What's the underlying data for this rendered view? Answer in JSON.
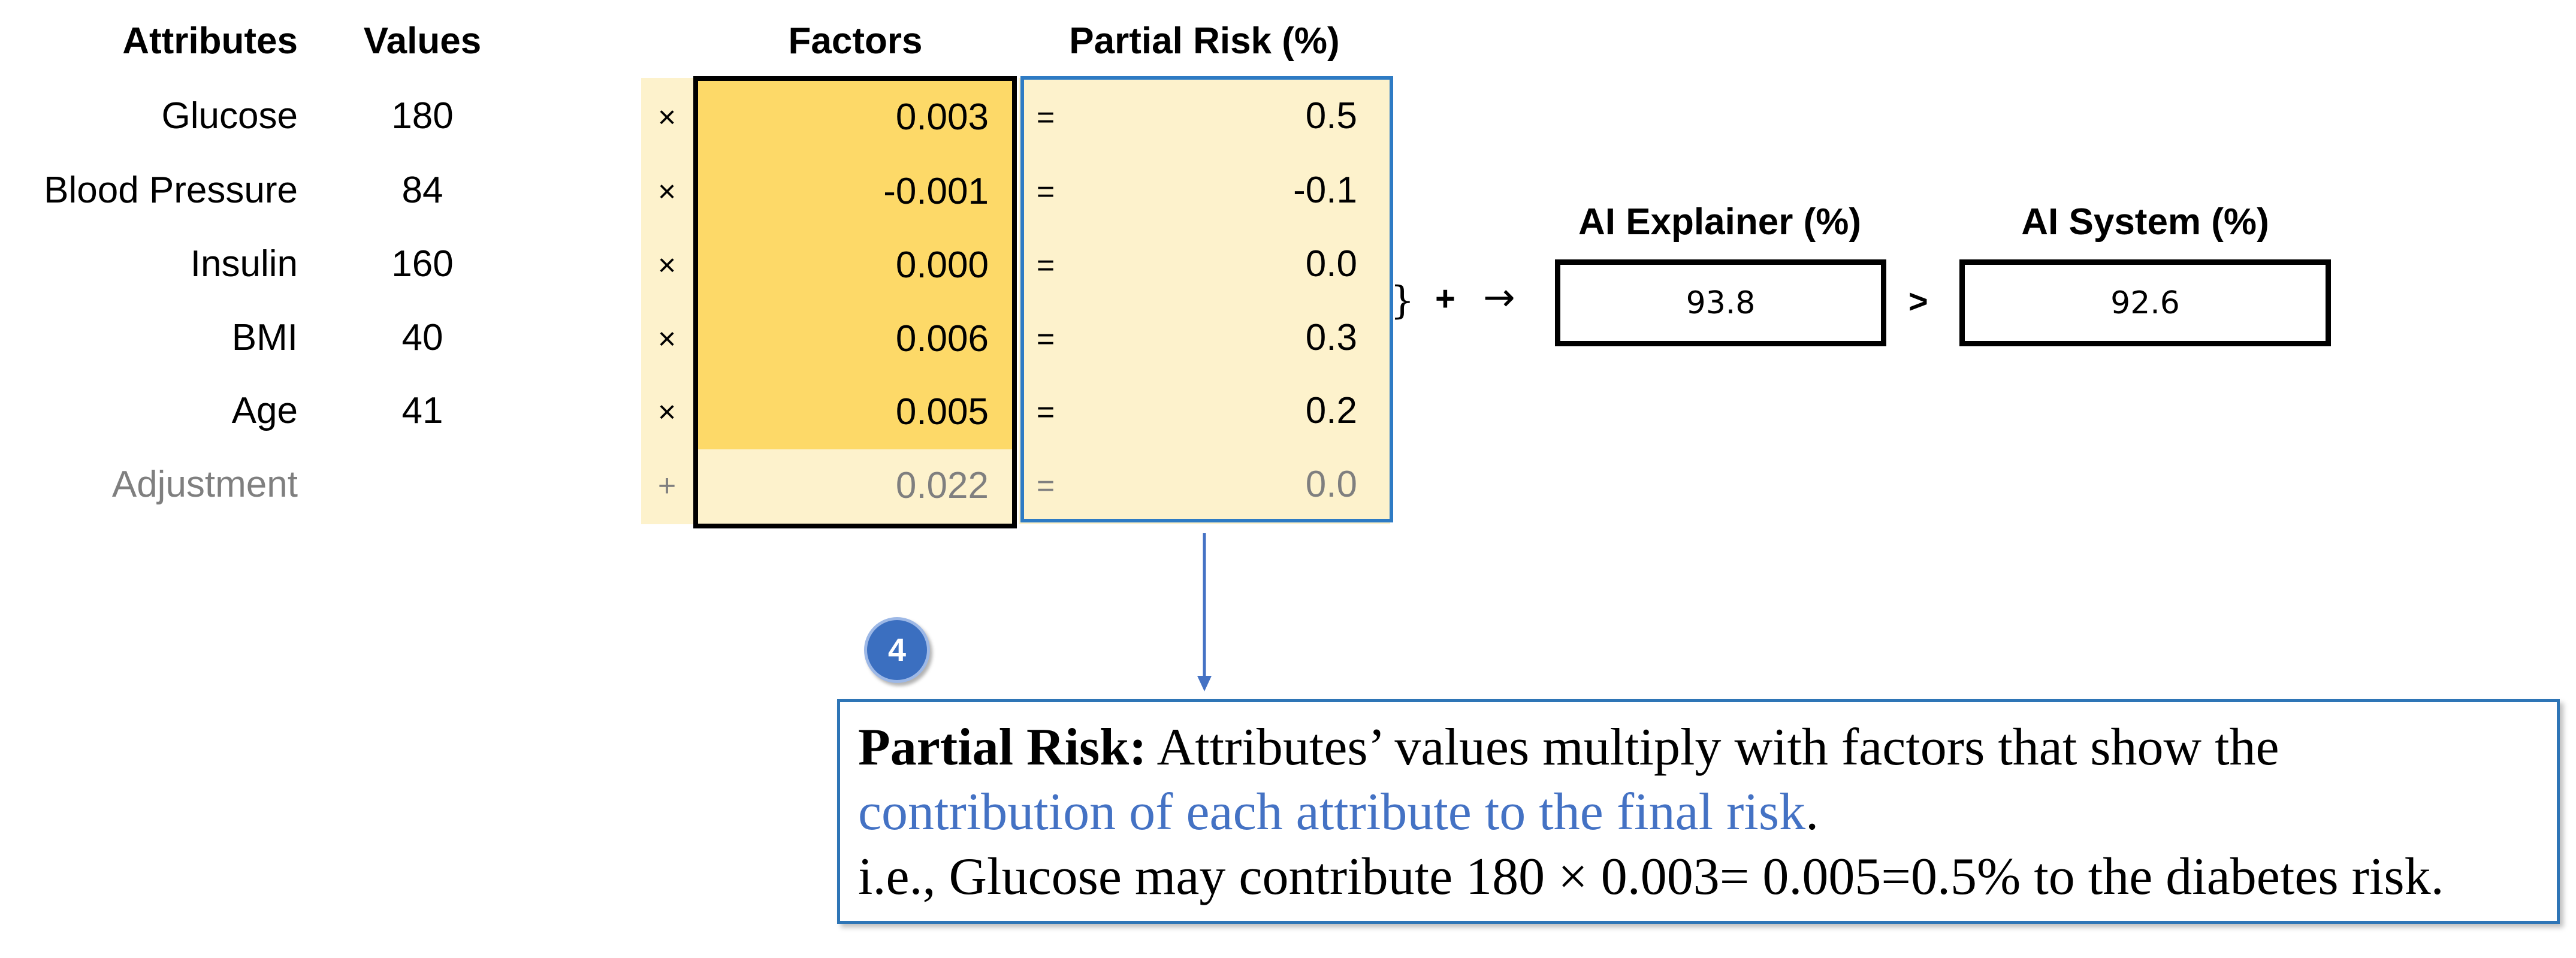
{
  "headers": {
    "attributes": "Attributes",
    "values": "Values",
    "factors": "Factors",
    "partial_risk": "Partial Risk (%)",
    "ai_explainer": "AI Explainer (%)",
    "ai_system": "AI System (%)"
  },
  "rows": [
    {
      "attribute": "Glucose",
      "value": "180",
      "op": "×",
      "factor": "0.003",
      "eq": "=",
      "partial": "0.5"
    },
    {
      "attribute": "Blood Pressure",
      "value": "84",
      "op": "×",
      "factor": "-0.001",
      "eq": "=",
      "partial": "-0.1"
    },
    {
      "attribute": "Insulin",
      "value": "160",
      "op": "×",
      "factor": "0.000",
      "eq": "=",
      "partial": "0.0"
    },
    {
      "attribute": "BMI",
      "value": "40",
      "op": "×",
      "factor": "0.006",
      "eq": "=",
      "partial": "0.3"
    },
    {
      "attribute": "Age",
      "value": "41",
      "op": "×",
      "factor": "0.005",
      "eq": "=",
      "partial": "0.2"
    },
    {
      "attribute": "Adjustment",
      "value": "",
      "op": "+",
      "factor": "0.022",
      "eq": "=",
      "partial": "0.0"
    }
  ],
  "sum_expression": {
    "brace": "}",
    "plus": "+",
    "arrow": "→"
  },
  "ai_explainer_value": "93.8",
  "comparison": ">",
  "ai_system_value": "92.6",
  "badge_number": "4",
  "callout": {
    "term": "Partial Risk:",
    "text1": " Attributes’ values multiply with factors that show the",
    "highlight": "contribution of each attribute to the final risk",
    "period": ".",
    "example": "i.e., Glucose may contribute 180 × 0.003= 0.005=0.5% to the diabetes risk."
  },
  "colors": {
    "factor_highlight": "#fdd968",
    "band_light": "#fdf2cc",
    "partial_border": "#2e7bc4",
    "callout_border": "#2e75b6",
    "callout_highlight": "#4472c4",
    "badge": "#3b6fc0"
  }
}
